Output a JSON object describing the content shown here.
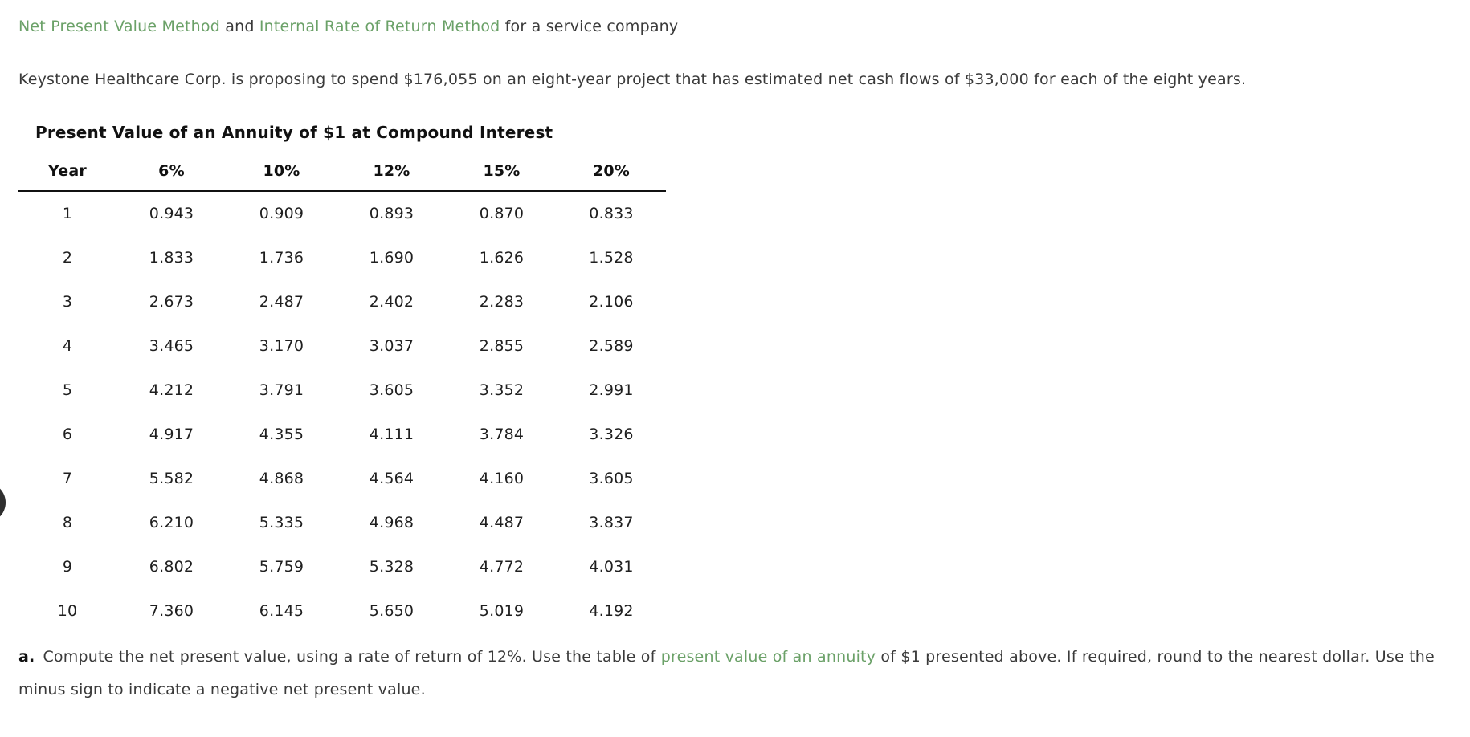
{
  "heading": {
    "link1": "Net Present Value Method",
    "conjunction": " and ",
    "link2": "Internal Rate of Return Method",
    "suffix": " for a service company"
  },
  "intro": "Keystone Healthcare Corp. is proposing to spend $176,055 on an eight-year project that has estimated net cash flows of $33,000 for each of the eight years.",
  "table": {
    "title": "Present Value of an Annuity of $1 at Compound Interest",
    "columns": [
      "Year",
      "6%",
      "10%",
      "12%",
      "15%",
      "20%"
    ],
    "rows": [
      [
        "1",
        "0.943",
        "0.909",
        "0.893",
        "0.870",
        "0.833"
      ],
      [
        "2",
        "1.833",
        "1.736",
        "1.690",
        "1.626",
        "1.528"
      ],
      [
        "3",
        "2.673",
        "2.487",
        "2.402",
        "2.283",
        "2.106"
      ],
      [
        "4",
        "3.465",
        "3.170",
        "3.037",
        "2.855",
        "2.589"
      ],
      [
        "5",
        "4.212",
        "3.791",
        "3.605",
        "3.352",
        "2.991"
      ],
      [
        "6",
        "4.917",
        "4.355",
        "4.111",
        "3.784",
        "3.326"
      ],
      [
        "7",
        "5.582",
        "4.868",
        "4.564",
        "4.160",
        "3.605"
      ],
      [
        "8",
        "6.210",
        "5.335",
        "4.968",
        "4.487",
        "3.837"
      ],
      [
        "9",
        "6.802",
        "5.759",
        "5.328",
        "4.772",
        "4.031"
      ],
      [
        "10",
        "7.360",
        "6.145",
        "5.650",
        "5.019",
        "4.192"
      ]
    ]
  },
  "question_a": {
    "label": "a.",
    "text_before_link": "Compute the net present value, using a rate of return of 12%. Use the table of ",
    "link_text": "present value of an annuity",
    "text_after_link": " of $1 presented above. If required, round to the nearest dollar. Use the minus sign to indicate a negative net present value."
  },
  "colors": {
    "link_green": "#6BA168",
    "body_text": "#3a3a3a",
    "table_text": "#1f1f1f"
  }
}
